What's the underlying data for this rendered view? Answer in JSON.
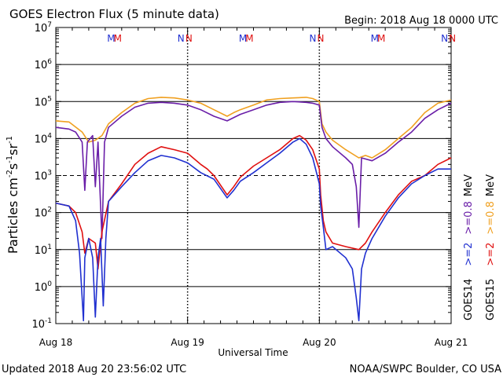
{
  "chart_data": {
    "type": "line",
    "title": "GOES Electron Flux (5 minute data)",
    "begin_label": "Begin: 2018 Aug 18 0000 UTC",
    "xlabel": "Universal Time",
    "ylabel_parts": {
      "main": "Particles cm",
      "exp1": "-2",
      "s": "s",
      "exp2": "-1",
      "sr": "sr",
      "exp3": "-1"
    },
    "footer_left": "Updated 2018 Aug 20 23:56:02 UTC",
    "footer_right": "NOAA/SWPC Boulder, CO USA",
    "x_ticks": [
      {
        "label": "Aug 18",
        "day": 0
      },
      {
        "label": "Aug 19",
        "day": 1
      },
      {
        "label": "Aug 20",
        "day": 2
      },
      {
        "label": "Aug 21",
        "day": 3
      }
    ],
    "xlim_days": [
      0,
      3
    ],
    "yscale": "log",
    "ylim": [
      0.1,
      10000000
    ],
    "y_ticks": [
      {
        "base": "10",
        "exp": "7",
        "value": 10000000
      },
      {
        "base": "10",
        "exp": "6",
        "value": 1000000
      },
      {
        "base": "10",
        "exp": "5",
        "value": 100000
      },
      {
        "base": "10",
        "exp": "4",
        "value": 10000
      },
      {
        "base": "10",
        "exp": "3",
        "value": 1000
      },
      {
        "base": "10",
        "exp": "2",
        "value": 100
      },
      {
        "base": "10",
        "exp": "1",
        "value": 10
      },
      {
        "base": "10",
        "exp": "0",
        "value": 1
      },
      {
        "base": "10",
        "exp": "-1",
        "value": 0.1
      }
    ],
    "threshold": 1000,
    "markers": [
      {
        "label": "M",
        "day": 0.42,
        "color": "#2030d0"
      },
      {
        "label": "M",
        "day": 0.47,
        "color": "#e01010"
      },
      {
        "label": "N",
        "day": 0.95,
        "color": "#2030d0"
      },
      {
        "label": "N",
        "day": 1.01,
        "color": "#e01010"
      },
      {
        "label": "M",
        "day": 1.42,
        "color": "#2030d0"
      },
      {
        "label": "M",
        "day": 1.47,
        "color": "#e01010"
      },
      {
        "label": "N",
        "day": 1.95,
        "color": "#2030d0"
      },
      {
        "label": "N",
        "day": 2.01,
        "color": "#e01010"
      },
      {
        "label": "M",
        "day": 2.42,
        "color": "#2030d0"
      },
      {
        "label": "M",
        "day": 2.47,
        "color": "#e01010"
      },
      {
        "label": "N",
        "day": 2.95,
        "color": "#2030d0"
      },
      {
        "label": "N",
        "day": 3.01,
        "color": "#e01010"
      }
    ],
    "legend": {
      "placement": "right",
      "groups": [
        {
          "name": "GOES14",
          "entries": [
            {
              "label": ">=2",
              "color": "#2030d0"
            },
            {
              "label": ">=0.8",
              "color": "#6a1ea8"
            }
          ]
        },
        {
          "name": "GOES15",
          "entries": [
            {
              "label": ">=2",
              "color": "#e01010"
            },
            {
              "label": ">=0.8",
              "color": "#f0a020"
            }
          ]
        }
      ],
      "unit": "MeV"
    },
    "series": [
      {
        "key": "g15_08",
        "color": "#f0a020",
        "points": [
          [
            0,
            30000
          ],
          [
            0.1,
            28000
          ],
          [
            0.2,
            15000
          ],
          [
            0.25,
            8000
          ],
          [
            0.3,
            9000
          ],
          [
            0.35,
            12000
          ],
          [
            0.4,
            25000
          ],
          [
            0.5,
            50000
          ],
          [
            0.6,
            90000
          ],
          [
            0.7,
            120000
          ],
          [
            0.8,
            130000
          ],
          [
            0.9,
            125000
          ],
          [
            1.0,
            110000
          ],
          [
            1.1,
            90000
          ],
          [
            1.2,
            60000
          ],
          [
            1.3,
            40000
          ],
          [
            1.35,
            50000
          ],
          [
            1.4,
            60000
          ],
          [
            1.5,
            80000
          ],
          [
            1.6,
            110000
          ],
          [
            1.7,
            120000
          ],
          [
            1.8,
            125000
          ],
          [
            1.9,
            130000
          ],
          [
            1.95,
            120000
          ],
          [
            2.0,
            100000
          ],
          [
            2.02,
            25000
          ],
          [
            2.05,
            15000
          ],
          [
            2.1,
            9000
          ],
          [
            2.2,
            5000
          ],
          [
            2.3,
            3000
          ],
          [
            2.35,
            3500
          ],
          [
            2.4,
            3000
          ],
          [
            2.5,
            5000
          ],
          [
            2.6,
            10000
          ],
          [
            2.7,
            20000
          ],
          [
            2.8,
            50000
          ],
          [
            2.9,
            90000
          ],
          [
            3.0,
            110000
          ]
        ]
      },
      {
        "key": "g14_08",
        "color": "#6a1ea8",
        "points": [
          [
            0,
            20000
          ],
          [
            0.1,
            18000
          ],
          [
            0.15,
            15000
          ],
          [
            0.2,
            8000
          ],
          [
            0.22,
            400
          ],
          [
            0.24,
            8000
          ],
          [
            0.28,
            12000
          ],
          [
            0.3,
            500
          ],
          [
            0.32,
            8000
          ],
          [
            0.35,
            20
          ],
          [
            0.37,
            8000
          ],
          [
            0.4,
            20000
          ],
          [
            0.5,
            40000
          ],
          [
            0.6,
            70000
          ],
          [
            0.7,
            90000
          ],
          [
            0.8,
            95000
          ],
          [
            0.9,
            90000
          ],
          [
            1.0,
            80000
          ],
          [
            1.1,
            60000
          ],
          [
            1.2,
            40000
          ],
          [
            1.3,
            30000
          ],
          [
            1.4,
            45000
          ],
          [
            1.5,
            60000
          ],
          [
            1.6,
            80000
          ],
          [
            1.7,
            95000
          ],
          [
            1.8,
            100000
          ],
          [
            1.9,
            95000
          ],
          [
            1.95,
            90000
          ],
          [
            2.0,
            80000
          ],
          [
            2.02,
            20000
          ],
          [
            2.05,
            10000
          ],
          [
            2.1,
            6000
          ],
          [
            2.2,
            3000
          ],
          [
            2.25,
            2000
          ],
          [
            2.28,
            500
          ],
          [
            2.3,
            40
          ],
          [
            2.32,
            3000
          ],
          [
            2.4,
            2500
          ],
          [
            2.5,
            4000
          ],
          [
            2.6,
            8000
          ],
          [
            2.7,
            15000
          ],
          [
            2.8,
            35000
          ],
          [
            2.9,
            60000
          ],
          [
            3.0,
            90000
          ]
        ]
      },
      {
        "key": "g15_2",
        "color": "#e01010",
        "points": [
          [
            0,
            180
          ],
          [
            0.1,
            150
          ],
          [
            0.15,
            100
          ],
          [
            0.2,
            30
          ],
          [
            0.22,
            8
          ],
          [
            0.25,
            20
          ],
          [
            0.3,
            15
          ],
          [
            0.32,
            3
          ],
          [
            0.35,
            30
          ],
          [
            0.4,
            200
          ],
          [
            0.5,
            600
          ],
          [
            0.6,
            2000
          ],
          [
            0.7,
            4000
          ],
          [
            0.8,
            6000
          ],
          [
            0.9,
            5000
          ],
          [
            1.0,
            4000
          ],
          [
            1.1,
            2000
          ],
          [
            1.15,
            1500
          ],
          [
            1.2,
            1000
          ],
          [
            1.3,
            300
          ],
          [
            1.35,
            500
          ],
          [
            1.4,
            900
          ],
          [
            1.5,
            1800
          ],
          [
            1.6,
            3000
          ],
          [
            1.7,
            5000
          ],
          [
            1.8,
            10000
          ],
          [
            1.85,
            12000
          ],
          [
            1.9,
            9000
          ],
          [
            1.95,
            5000
          ],
          [
            2.0,
            1500
          ],
          [
            2.01,
            300
          ],
          [
            2.03,
            60
          ],
          [
            2.05,
            30
          ],
          [
            2.1,
            15
          ],
          [
            2.2,
            12
          ],
          [
            2.3,
            10
          ],
          [
            2.35,
            15
          ],
          [
            2.4,
            30
          ],
          [
            2.5,
            100
          ],
          [
            2.6,
            300
          ],
          [
            2.7,
            700
          ],
          [
            2.8,
            1000
          ],
          [
            2.9,
            2000
          ],
          [
            3.0,
            3000
          ]
        ]
      },
      {
        "key": "g14_2",
        "color": "#2030d0",
        "points": [
          [
            0,
            180
          ],
          [
            0.1,
            150
          ],
          [
            0.15,
            60
          ],
          [
            0.18,
            8
          ],
          [
            0.2,
            0.5
          ],
          [
            0.21,
            0.12
          ],
          [
            0.22,
            6
          ],
          [
            0.25,
            20
          ],
          [
            0.28,
            6
          ],
          [
            0.3,
            0.15
          ],
          [
            0.32,
            6
          ],
          [
            0.34,
            20
          ],
          [
            0.36,
            0.3
          ],
          [
            0.38,
            20
          ],
          [
            0.4,
            200
          ],
          [
            0.5,
            500
          ],
          [
            0.6,
            1200
          ],
          [
            0.7,
            2500
          ],
          [
            0.8,
            3500
          ],
          [
            0.9,
            3000
          ],
          [
            1.0,
            2200
          ],
          [
            1.1,
            1200
          ],
          [
            1.2,
            800
          ],
          [
            1.3,
            250
          ],
          [
            1.35,
            400
          ],
          [
            1.4,
            700
          ],
          [
            1.5,
            1200
          ],
          [
            1.6,
            2200
          ],
          [
            1.7,
            4000
          ],
          [
            1.8,
            8000
          ],
          [
            1.85,
            10000
          ],
          [
            1.9,
            7000
          ],
          [
            1.95,
            3000
          ],
          [
            2.0,
            600
          ],
          [
            2.01,
            150
          ],
          [
            2.03,
            40
          ],
          [
            2.05,
            10
          ],
          [
            2.1,
            12
          ],
          [
            2.2,
            6
          ],
          [
            2.25,
            3
          ],
          [
            2.28,
            0.5
          ],
          [
            2.3,
            0.12
          ],
          [
            2.32,
            3
          ],
          [
            2.35,
            8
          ],
          [
            2.4,
            20
          ],
          [
            2.5,
            80
          ],
          [
            2.6,
            250
          ],
          [
            2.7,
            600
          ],
          [
            2.8,
            1000
          ],
          [
            2.9,
            1500
          ],
          [
            3.0,
            1500
          ]
        ]
      }
    ]
  }
}
